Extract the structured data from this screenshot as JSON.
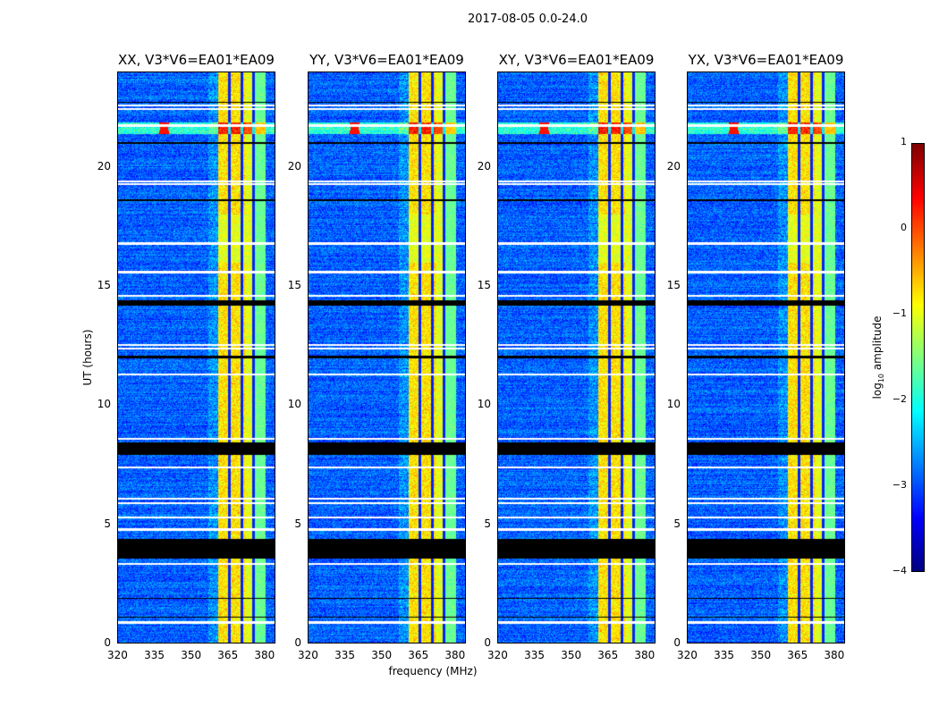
{
  "chart_data": {
    "type": "heatmap",
    "suptitle": "2017-08-05 0.0-24.0",
    "xlabel": "frequency (MHz)",
    "ylabel": "UT (hours)",
    "xlim": [
      320,
      384.6
    ],
    "ylim": [
      0,
      24
    ],
    "xticks": [
      "320",
      "335",
      "350",
      "365",
      "380"
    ],
    "xtick_values": [
      320,
      335,
      350,
      365,
      380
    ],
    "yticks": [
      "0",
      "5",
      "10",
      "15",
      "20"
    ],
    "ytick_values": [
      0,
      5,
      10,
      15,
      20
    ],
    "panels": [
      {
        "title": "XX, V3*V6=EA01*EA09"
      },
      {
        "title": "YY, V3*V6=EA01*EA09"
      },
      {
        "title": "XY, V3*V6=EA01*EA09"
      },
      {
        "title": "YX, V3*V6=EA01*EA09"
      }
    ],
    "colorbar": {
      "label_prefix": "log",
      "label_sub": "10",
      "label_suffix": " amplitude",
      "range": [
        -4,
        1
      ],
      "ticks": [
        "1",
        "0",
        "−1",
        "−2",
        "−3",
        "−4"
      ],
      "tick_values": [
        1,
        0,
        -1,
        -2,
        -3,
        -4
      ],
      "colormap": "jet"
    },
    "features": {
      "background_level": -2.9,
      "band_mhz": [
        361,
        380.3
      ],
      "band_level": -1.0,
      "band_gaps_mhz": [
        365.7,
        370.8,
        375.6
      ],
      "rfi_hours": [
        21.4,
        21.9
      ],
      "flagged_hours_white": [
        22.6,
        22.45,
        21.75,
        19.4,
        19.3,
        16.8,
        15.6,
        14.6,
        12.55,
        12.4,
        11.3,
        8.6,
        7.4,
        6.1,
        5.9,
        5.3,
        4.8,
        3.35,
        0.9
      ],
      "flagged_hours_black": [
        [
          22.7,
          22.75
        ],
        [
          21.0,
          21.05
        ],
        [
          18.6,
          18.65
        ],
        [
          14.2,
          14.4
        ],
        [
          12.0,
          12.1
        ],
        [
          7.95,
          8.45
        ],
        [
          3.6,
          4.4
        ],
        [
          1.9,
          1.95
        ],
        [
          1.1,
          1.15
        ]
      ]
    }
  }
}
